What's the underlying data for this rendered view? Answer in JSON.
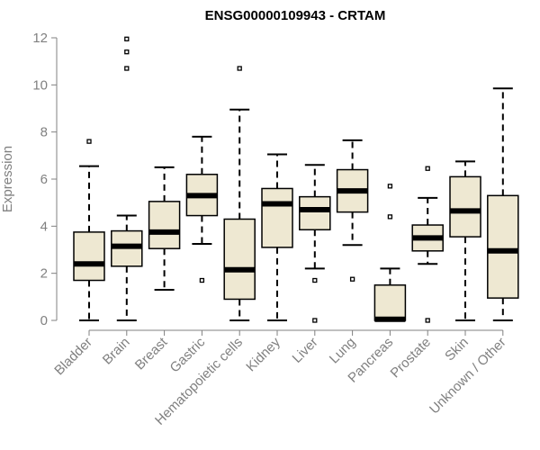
{
  "chart_data": {
    "type": "boxplot",
    "title": "ENSG00000109943 - CRTAM",
    "ylabel": "Expression",
    "xlabel": "",
    "ylim": [
      0,
      12
    ],
    "yticks": [
      0,
      2,
      4,
      6,
      8,
      10,
      12
    ],
    "categories": [
      "Bladder",
      "Brain",
      "Breast",
      "Gastric",
      "Hematopoietic cells",
      "Kidney",
      "Liver",
      "Lung",
      "Pancreas",
      "Prostate",
      "Skin",
      "Unknown / Other"
    ],
    "boxes": [
      {
        "min": 0.0,
        "q1": 1.7,
        "median": 2.4,
        "q3": 3.75,
        "max": 6.55,
        "outliers": [
          7.6
        ]
      },
      {
        "min": 0.0,
        "q1": 2.3,
        "median": 3.15,
        "q3": 3.8,
        "max": 4.45,
        "outliers": [
          10.7,
          11.4,
          11.95
        ]
      },
      {
        "min": 1.3,
        "q1": 3.05,
        "median": 3.75,
        "q3": 5.05,
        "max": 6.5,
        "outliers": []
      },
      {
        "min": 3.25,
        "q1": 4.45,
        "median": 5.3,
        "q3": 6.2,
        "max": 7.8,
        "outliers": [
          1.7
        ]
      },
      {
        "min": 0.0,
        "q1": 0.9,
        "median": 2.15,
        "q3": 4.3,
        "max": 8.95,
        "outliers": [
          10.7
        ]
      },
      {
        "min": 0.0,
        "q1": 3.1,
        "median": 4.95,
        "q3": 5.6,
        "max": 7.05,
        "outliers": []
      },
      {
        "min": 2.2,
        "q1": 3.85,
        "median": 4.7,
        "q3": 5.25,
        "max": 6.6,
        "outliers": [
          1.7,
          0.0
        ]
      },
      {
        "min": 3.2,
        "q1": 4.6,
        "median": 5.5,
        "q3": 6.4,
        "max": 7.65,
        "outliers": [
          1.75
        ]
      },
      {
        "min": 0.0,
        "q1": 0.0,
        "median": 0.05,
        "q3": 1.5,
        "max": 2.2,
        "outliers": [
          4.4,
          5.7
        ]
      },
      {
        "min": 2.4,
        "q1": 2.95,
        "median": 3.5,
        "q3": 4.05,
        "max": 5.2,
        "outliers": [
          6.45,
          0.0
        ]
      },
      {
        "min": 0.0,
        "q1": 3.55,
        "median": 4.65,
        "q3": 6.1,
        "max": 6.75,
        "outliers": []
      },
      {
        "min": 0.0,
        "q1": 0.95,
        "median": 2.95,
        "q3": 5.3,
        "max": 9.85,
        "outliers": []
      }
    ],
    "colors": {
      "box_fill": "#EEE8D2",
      "box_stroke": "#000000",
      "axis": "#808080",
      "title": "#000000"
    },
    "grid": false,
    "legend": "none"
  }
}
